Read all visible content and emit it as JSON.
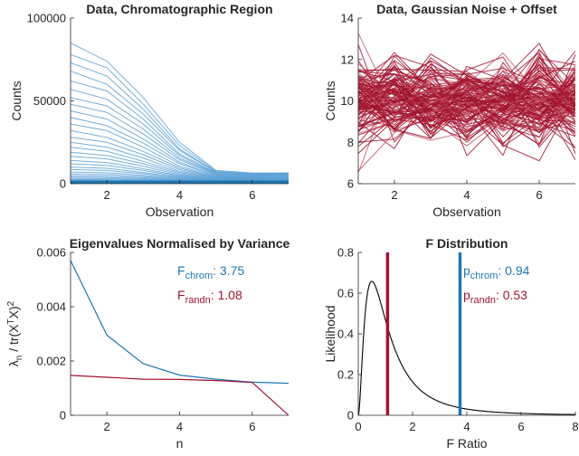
{
  "colors": {
    "blue": "#1f77b4",
    "blue_light": "#5aa0d6",
    "red": "#a2142f",
    "red_light": "#c8566b",
    "axis": "#262626"
  },
  "chart_data": [
    {
      "id": "chrom",
      "type": "line",
      "title": "Data, Chromatographic Region",
      "xlabel": "Observation",
      "ylabel": "Counts",
      "xlim": [
        1,
        7
      ],
      "ylim": [
        0,
        100000
      ],
      "xticks": [
        2,
        4,
        6
      ],
      "yticks": [
        0,
        50000,
        100000
      ],
      "series_color": "blue",
      "series": [
        {
          "values": [
            85000,
            74000,
            52000,
            25000,
            8000,
            6500,
            6500
          ]
        },
        {
          "values": [
            78000,
            70000,
            48000,
            23000,
            7500,
            6000,
            6500
          ]
        },
        {
          "values": [
            73000,
            65000,
            45000,
            21000,
            7000,
            6000,
            6000
          ]
        },
        {
          "values": [
            68000,
            60000,
            42000,
            20000,
            7000,
            5800,
            6000
          ]
        },
        {
          "values": [
            62000,
            56000,
            39000,
            18000,
            6500,
            5500,
            5500
          ]
        },
        {
          "values": [
            57000,
            51000,
            36000,
            17000,
            6000,
            5200,
            5500
          ]
        },
        {
          "values": [
            52000,
            47000,
            33000,
            15500,
            5800,
            5000,
            5000
          ]
        },
        {
          "values": [
            48000,
            43000,
            30000,
            14500,
            5500,
            4800,
            5000
          ]
        },
        {
          "values": [
            44000,
            39000,
            27000,
            13000,
            5000,
            4500,
            4500
          ]
        },
        {
          "values": [
            40000,
            35000,
            24500,
            12000,
            4800,
            4200,
            4500
          ]
        },
        {
          "values": [
            36000,
            32000,
            22000,
            10500,
            4500,
            4000,
            4000
          ]
        },
        {
          "values": [
            32000,
            28000,
            19500,
            9500,
            4200,
            3800,
            4000
          ]
        },
        {
          "values": [
            28000,
            25000,
            17500,
            8500,
            4000,
            3500,
            3500
          ]
        },
        {
          "values": [
            25000,
            22000,
            15500,
            7500,
            3800,
            3300,
            3500
          ]
        },
        {
          "values": [
            22000,
            19500,
            13500,
            6800,
            3500,
            3000,
            3000
          ]
        },
        {
          "values": [
            19000,
            17000,
            12000,
            6000,
            3200,
            2800,
            3000
          ]
        },
        {
          "values": [
            16500,
            15000,
            10500,
            5300,
            3000,
            2600,
            2800
          ]
        },
        {
          "values": [
            14000,
            12800,
            9000,
            4800,
            2800,
            2400,
            2500
          ]
        },
        {
          "values": [
            12000,
            11000,
            8000,
            4300,
            2600,
            2200,
            2300
          ]
        },
        {
          "values": [
            10000,
            9300,
            6800,
            3800,
            2400,
            2000,
            2100
          ]
        },
        {
          "values": [
            8500,
            8000,
            6000,
            3400,
            2200,
            1900,
            2000
          ]
        },
        {
          "values": [
            7000,
            6600,
            5000,
            3000,
            2000,
            1700,
            1800
          ]
        },
        {
          "values": [
            5800,
            5500,
            4300,
            2700,
            1800,
            1600,
            1600
          ]
        },
        {
          "values": [
            4800,
            4500,
            3600,
            2400,
            1600,
            1400,
            1500
          ]
        },
        {
          "values": [
            3900,
            3700,
            3000,
            2100,
            1500,
            1300,
            1300
          ]
        },
        {
          "values": [
            3100,
            3000,
            2500,
            1800,
            1300,
            1200,
            1200
          ]
        },
        {
          "values": [
            2500,
            2400,
            2000,
            1600,
            1200,
            1100,
            1100
          ]
        },
        {
          "values": [
            2000,
            1900,
            1700,
            1400,
            1100,
            1000,
            1000
          ]
        },
        {
          "values": [
            1600,
            1500,
            1400,
            1200,
            1000,
            900,
            900
          ]
        },
        {
          "values": [
            1200,
            1200,
            1100,
            1000,
            900,
            800,
            800
          ]
        },
        {
          "values": [
            900,
            900,
            850,
            800,
            750,
            700,
            700
          ]
        },
        {
          "values": [
            600,
            600,
            600,
            550,
            550,
            500,
            500
          ]
        }
      ]
    },
    {
      "id": "noise",
      "type": "line",
      "title": "Data, Gaussian Noise + Offset",
      "xlabel": "Observation",
      "ylabel": "Counts",
      "xlim": [
        1,
        7
      ],
      "ylim": [
        6,
        14
      ],
      "xticks": [
        2,
        4,
        6
      ],
      "yticks": [
        6,
        8,
        10,
        12,
        14
      ],
      "series_color": "red",
      "mean": 10,
      "sd": 1,
      "n_series": 120
    },
    {
      "id": "eig",
      "type": "line",
      "title": "Eigenvalues Normalised by Variance",
      "xlabel": "n",
      "ylabel": "λn / tr(XTX)2",
      "xlim": [
        1,
        7
      ],
      "ylim": [
        0,
        0.006
      ],
      "xticks": [
        2,
        4,
        6
      ],
      "yticks": [
        0,
        0.002,
        0.004,
        0.006
      ],
      "ytick_labels": [
        "0",
        "0.002",
        "0.004",
        "0.006"
      ],
      "series": [
        {
          "color": "blue",
          "x": [
            1,
            2,
            3,
            4,
            5,
            6,
            7
          ],
          "values": [
            0.0057,
            0.00295,
            0.0019,
            0.00148,
            0.00133,
            0.00122,
            0.00118
          ]
        },
        {
          "color": "red",
          "x": [
            1,
            2,
            3,
            4,
            5,
            6,
            7
          ],
          "values": [
            0.00147,
            0.0014,
            0.00133,
            0.00132,
            0.00128,
            0.00121,
            0.0
          ]
        }
      ],
      "annotations": [
        {
          "main": "F",
          "sub": "chrom",
          "value": ": 3.75",
          "color": "blue"
        },
        {
          "main": "F",
          "sub": "randn",
          "value": ": 1.08",
          "color": "red"
        }
      ]
    },
    {
      "id": "fdist",
      "type": "line",
      "title": "F Distribution",
      "xlabel": "F Ratio",
      "ylabel": "Likelihood",
      "xlim": [
        0,
        8
      ],
      "ylim": [
        0,
        0.8
      ],
      "xticks": [
        0,
        2,
        4,
        6,
        8
      ],
      "yticks": [
        0,
        0.2,
        0.4,
        0.6,
        0.8
      ],
      "ytick_labels": [
        "0",
        "0.2",
        "0.4",
        "0.6",
        "0.8"
      ],
      "df1": 6,
      "df2": 6,
      "vlines": [
        {
          "x": 1.08,
          "color": "red"
        },
        {
          "x": 3.75,
          "color": "blue"
        }
      ],
      "annotations": [
        {
          "main": "p",
          "sub": "chrom",
          "value": ": 0.94",
          "color": "blue"
        },
        {
          "main": "p",
          "sub": "randn",
          "value": ": 0.53",
          "color": "red"
        }
      ]
    }
  ]
}
